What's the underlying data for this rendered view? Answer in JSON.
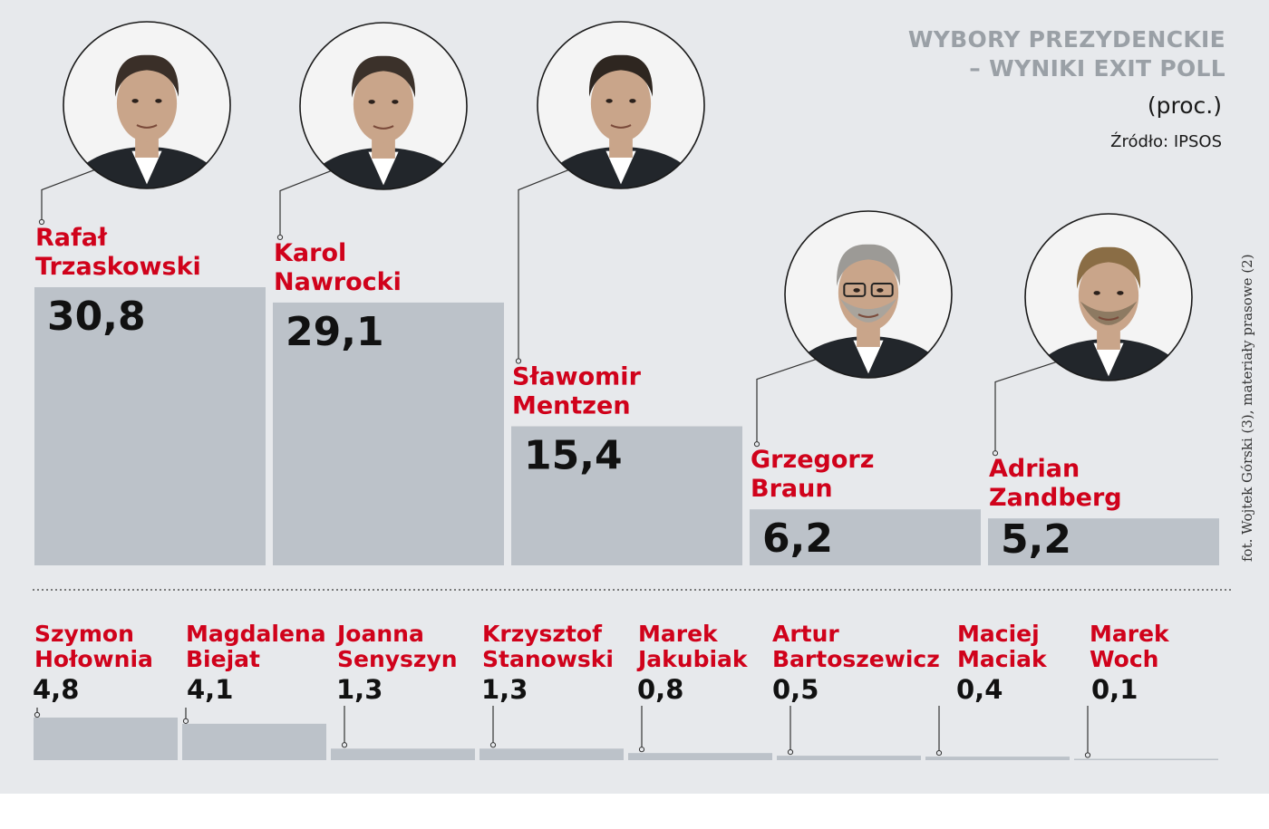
{
  "header": {
    "title_line1": "WYBORY PREZYDENCKIE",
    "title_line2": "– WYNIKI EXIT POLL",
    "unit": "(proc.)",
    "source": "Źródło: IPSOS"
  },
  "photo_credit": "fot. Wojtek Górski (3), materiały prasowe (2)",
  "chart_data": [
    {
      "type": "bar",
      "categories": [
        "Rafał Trzaskowski",
        "Karol Nawrocki",
        "Sławomir Mentzen",
        "Grzegorz Braun",
        "Adrian Zandberg"
      ],
      "label_lines": [
        [
          "Rafał",
          "Trzaskowski"
        ],
        [
          "Karol",
          "Nawrocki"
        ],
        [
          "Sławomir",
          "Mentzen"
        ],
        [
          "Grzegorz",
          "Braun"
        ],
        [
          "Adrian",
          "Zandberg"
        ]
      ],
      "values": [
        30.8,
        29.1,
        15.4,
        6.2,
        5.2
      ],
      "value_labels": [
        "30,8",
        "29,1",
        "15,4",
        "6,2",
        "5,2"
      ],
      "colors": {
        "bar": "#bcc2c9",
        "name": "#d0021b",
        "value": "#111111"
      }
    },
    {
      "type": "bar",
      "categories": [
        "Szymon Hołownia",
        "Magdalena Biejat",
        "Joanna Senyszyn",
        "Krzysztof Stanowski",
        "Marek Jakubiak",
        "Artur Bartoszewicz",
        "Maciej Maciak",
        "Marek Woch"
      ],
      "label_lines": [
        [
          "Szymon",
          "Hołownia"
        ],
        [
          "Magdalena",
          "Biejat"
        ],
        [
          "Joanna",
          "Senyszyn"
        ],
        [
          "Krzysztof",
          "Stanowski"
        ],
        [
          "Marek",
          "Jakubiak"
        ],
        [
          "Artur",
          "Bartoszewicz"
        ],
        [
          "Maciej",
          "Maciak"
        ],
        [
          "Marek",
          "Woch"
        ]
      ],
      "values": [
        4.8,
        4.1,
        1.3,
        1.3,
        0.8,
        0.5,
        0.4,
        0.1
      ],
      "value_labels": [
        "4,8",
        "4,1",
        "1,3",
        "1,3",
        "0,8",
        "0,5",
        "0,4",
        "0,1"
      ],
      "colors": {
        "bar": "#bcc2c9",
        "name": "#d0021b",
        "value": "#111111"
      }
    }
  ]
}
